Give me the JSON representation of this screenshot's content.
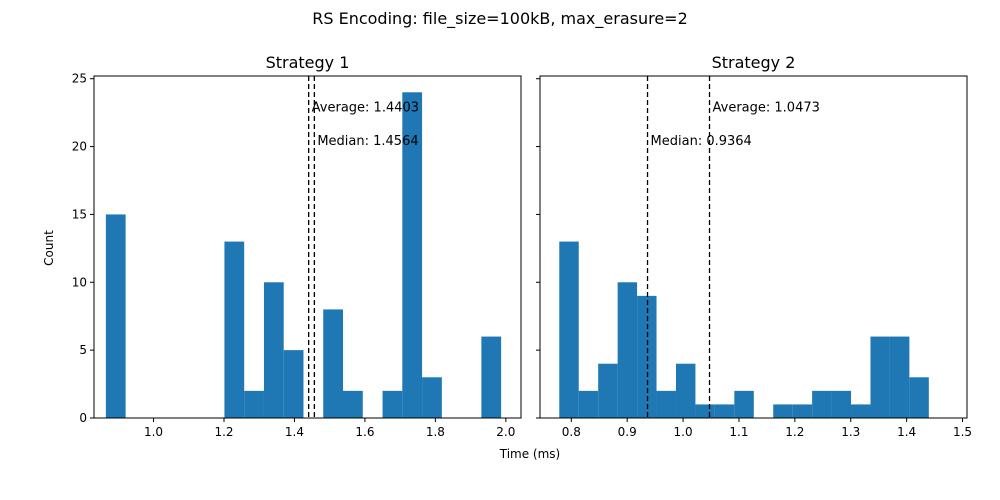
{
  "figure": {
    "suptitle": "RS Encoding: file_size=100kB, max_erasure=2",
    "xlabel": "Time (ms)",
    "ylabel": "Count"
  },
  "colors": {
    "bar": "#1f77b4",
    "axes": "#000000",
    "line": "#000000"
  },
  "chart_data": [
    {
      "type": "bar",
      "title": "Strategy 1",
      "xlabel": "Time (ms)",
      "ylabel": "Count",
      "xlim": [
        0.831,
        2.043
      ],
      "ylim": [
        0,
        25.2
      ],
      "xticks": [
        1.0,
        1.2,
        1.4,
        1.6,
        1.8,
        2.0
      ],
      "xtick_labels": [
        "1.0",
        "1.2",
        "1.4",
        "1.6",
        "1.8",
        "2.0"
      ],
      "yticks": [
        0,
        5,
        10,
        15,
        20,
        25
      ],
      "ytick_labels": [
        "0",
        "5",
        "10",
        "15",
        "20",
        "25"
      ],
      "bin_start": 0.8646,
      "bin_width": 0.0561,
      "values": [
        15,
        0,
        0,
        0,
        0,
        0,
        13,
        2,
        10,
        5,
        0,
        8,
        2,
        0,
        2,
        24,
        3,
        0,
        0,
        6
      ],
      "average": 1.4403,
      "median": 1.4564,
      "average_label": "Average: 1.4403",
      "median_label": "Median: 1.4564",
      "grid": false
    },
    {
      "type": "bar",
      "title": "Strategy 2",
      "xlabel": "Time (ms)",
      "ylabel": "Count",
      "xlim": [
        0.744,
        1.508
      ],
      "ylim": [
        0,
        25.2
      ],
      "xticks": [
        0.8,
        0.9,
        1.0,
        1.1,
        1.2,
        1.3,
        1.4,
        1.5
      ],
      "xtick_labels": [
        "0.8",
        "0.9",
        "1.0",
        "1.1",
        "1.2",
        "1.3",
        "1.4",
        "1.5"
      ],
      "yticks": [
        0,
        5,
        10,
        15,
        20,
        25
      ],
      "ytick_labels": [
        "",
        "",
        "",
        "",
        "",
        ""
      ],
      "bin_start": 0.7785,
      "bin_width": 0.0348,
      "values": [
        13,
        2,
        4,
        10,
        9,
        2,
        4,
        1,
        1,
        2,
        0,
        1,
        1,
        2,
        2,
        1,
        6,
        6,
        3
      ],
      "average": 1.0473,
      "median": 0.9364,
      "average_label": "Average: 1.0473",
      "median_label": "Median: 0.9364",
      "grid": false
    }
  ]
}
